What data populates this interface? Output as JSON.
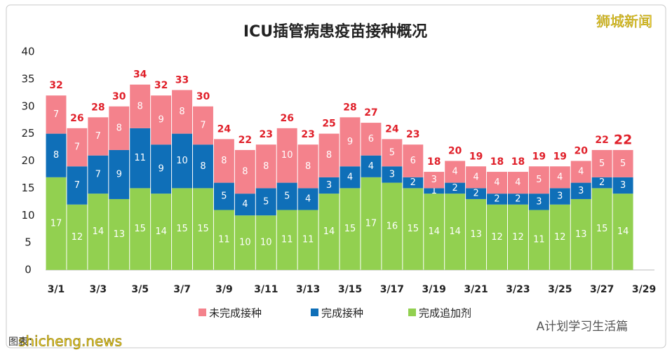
{
  "chart_data": {
    "type": "stacked-bar",
    "title": "ICU插管病患疫苗接种概况",
    "categories": [
      "3/1",
      null,
      "3/3",
      null,
      "3/5",
      null,
      "3/7",
      null,
      "3/9",
      null,
      "3/11",
      null,
      "3/13",
      null,
      "3/15",
      null,
      "3/17",
      null,
      "3/19",
      null,
      "3/21",
      null,
      "3/23",
      null,
      "3/25",
      null,
      "3/27",
      null,
      "3/29"
    ],
    "series": [
      {
        "name": "完成追加剂",
        "color": "#92d050",
        "values": [
          17,
          12,
          14,
          13,
          15,
          14,
          15,
          15,
          11,
          10,
          10,
          11,
          11,
          14,
          15,
          17,
          16,
          15,
          14,
          14,
          13,
          12,
          12,
          11,
          12,
          13,
          15,
          14,
          null
        ]
      },
      {
        "name": "完成接种",
        "color": "#0f6fb8",
        "values": [
          8,
          7,
          7,
          9,
          11,
          9,
          10,
          8,
          5,
          4,
          5,
          5,
          4,
          3,
          4,
          4,
          3,
          2,
          1,
          2,
          2,
          2,
          2,
          3,
          3,
          3,
          2,
          3,
          null
        ]
      },
      {
        "name": "未完成接种",
        "color": "#f4828c",
        "values": [
          7,
          7,
          7,
          8,
          8,
          9,
          8,
          7,
          8,
          8,
          8,
          10,
          8,
          8,
          9,
          6,
          5,
          6,
          3,
          4,
          4,
          4,
          4,
          5,
          4,
          4,
          5,
          5,
          null
        ]
      }
    ],
    "totals": [
      32,
      26,
      28,
      30,
      34,
      32,
      33,
      30,
      24,
      22,
      23,
      26,
      23,
      25,
      28,
      27,
      24,
      23,
      18,
      20,
      19,
      18,
      18,
      19,
      19,
      20,
      22,
      22,
      null
    ],
    "ylim": [
      0,
      40
    ],
    "yticks": [
      0,
      5,
      10,
      15,
      20,
      25,
      30,
      35,
      40
    ],
    "grid": false,
    "watermarks": [
      "狮城新闻",
      "A计划学习生活篇",
      "shicheng.news",
      "图表："
    ]
  }
}
